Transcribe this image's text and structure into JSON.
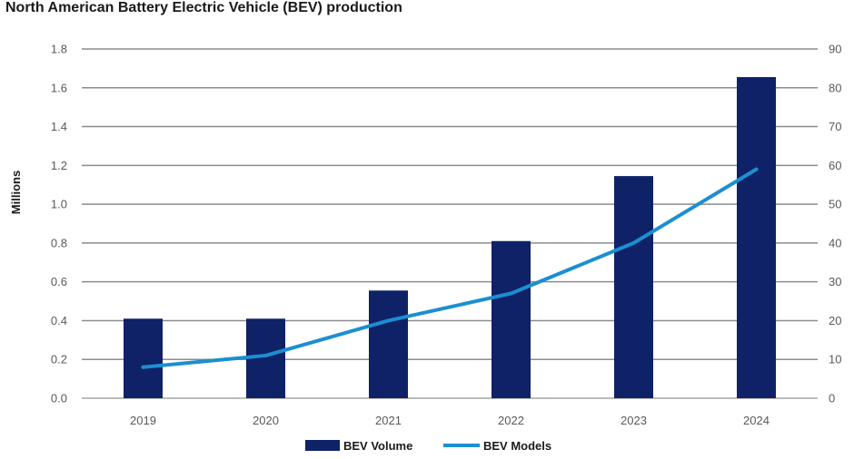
{
  "chart_data": {
    "type": "bar",
    "title": "North American Battery Electric Vehicle (BEV) production",
    "ylabel": "Millions",
    "categories": [
      "2019",
      "2020",
      "2021",
      "2022",
      "2023",
      "2024"
    ],
    "ylim": [
      0,
      1.8
    ],
    "y_ticks": [
      "0.0",
      "0.2",
      "0.4",
      "0.6",
      "0.8",
      "1.0",
      "1.2",
      "1.4",
      "1.6",
      "1.8"
    ],
    "y2lim": [
      0,
      90
    ],
    "y2_ticks": [
      "0",
      "10",
      "20",
      "30",
      "40",
      "50",
      "60",
      "70",
      "80",
      "90"
    ],
    "grid": true,
    "legend_position": "bottom",
    "series": [
      {
        "name": "BEV Volume",
        "kind": "bar",
        "axis": "left",
        "color": "#0f2167",
        "values": [
          0.41,
          0.41,
          0.555,
          0.81,
          1.145,
          1.655
        ]
      },
      {
        "name": "BEV Models",
        "kind": "line",
        "axis": "right",
        "color": "#1b8fd0",
        "values": [
          8,
          11,
          20,
          27,
          40,
          59
        ]
      }
    ]
  }
}
